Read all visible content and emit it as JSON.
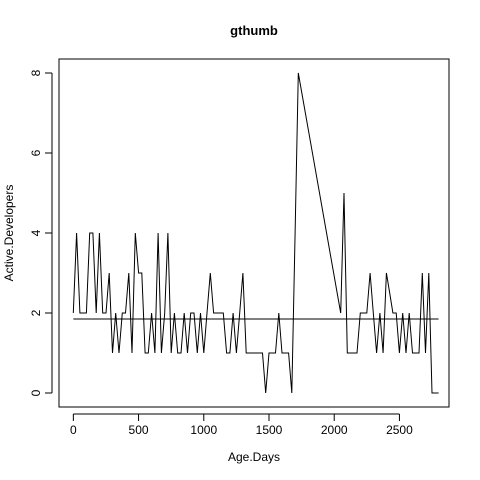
{
  "chart_data": {
    "type": "line",
    "title": "gthumb",
    "xlabel": "Age.Days",
    "ylabel": "Active.Developers",
    "xlim": [
      -110,
      2880
    ],
    "ylim": [
      -0.35,
      8.35
    ],
    "x_ticks": [
      0,
      500,
      1000,
      1500,
      2000,
      2500
    ],
    "x_tick_labels": [
      "0",
      "500",
      "1000",
      "1500",
      "2000",
      "2500"
    ],
    "y_ticks": [
      0,
      2,
      4,
      6,
      8
    ],
    "y_tick_labels": [
      "0",
      "2",
      "4",
      "6",
      "8"
    ],
    "grid": false,
    "series": [
      {
        "x": [
          0,
          25,
          50,
          75,
          100,
          125,
          150,
          175,
          200,
          225,
          250,
          275,
          300,
          325,
          350,
          375,
          400,
          425,
          450,
          475,
          500,
          525,
          550,
          575,
          600,
          625,
          650,
          675,
          700,
          725,
          750,
          775,
          800,
          825,
          850,
          875,
          900,
          925,
          950,
          975,
          1000,
          1025,
          1050,
          1075,
          1100,
          1125,
          1150,
          1175,
          1200,
          1225,
          1250,
          1275,
          1300,
          1325,
          1350,
          1375,
          1400,
          1425,
          1450,
          1475,
          1500,
          1525,
          1550,
          1575,
          1600,
          1625,
          1650,
          1675,
          1700,
          1725,
          2050,
          2075,
          2100,
          2125,
          2150,
          2175,
          2200,
          2225,
          2250,
          2275,
          2300,
          2325,
          2350,
          2375,
          2400,
          2425,
          2450,
          2475,
          2500,
          2525,
          2550,
          2575,
          2600,
          2625,
          2650,
          2675,
          2700,
          2725,
          2750,
          2775,
          2800
        ],
        "y": [
          2,
          4,
          2,
          2,
          2,
          4,
          4,
          2,
          4,
          2,
          2,
          3,
          1,
          2,
          1,
          2,
          2,
          3,
          1,
          4,
          3,
          3,
          1,
          1,
          2,
          1,
          4,
          1,
          2,
          4,
          1,
          2,
          1,
          1,
          2,
          1,
          2,
          2,
          1,
          2,
          1,
          2,
          3,
          2,
          2,
          2,
          2,
          1,
          1,
          2,
          1,
          2,
          3,
          1,
          1,
          1,
          1,
          1,
          1,
          0,
          1,
          1,
          1,
          2,
          1,
          1,
          1,
          0,
          4,
          8,
          2,
          5,
          1,
          1,
          1,
          1,
          2,
          2,
          2,
          3,
          2,
          1,
          2,
          1,
          3,
          2.5,
          2,
          2,
          1,
          2,
          1,
          2,
          1,
          1,
          1,
          3,
          1,
          3,
          0,
          0,
          0
        ]
      }
    ],
    "reference_line": {
      "x": [
        0,
        2800
      ],
      "y": [
        1.85,
        1.85
      ]
    }
  }
}
